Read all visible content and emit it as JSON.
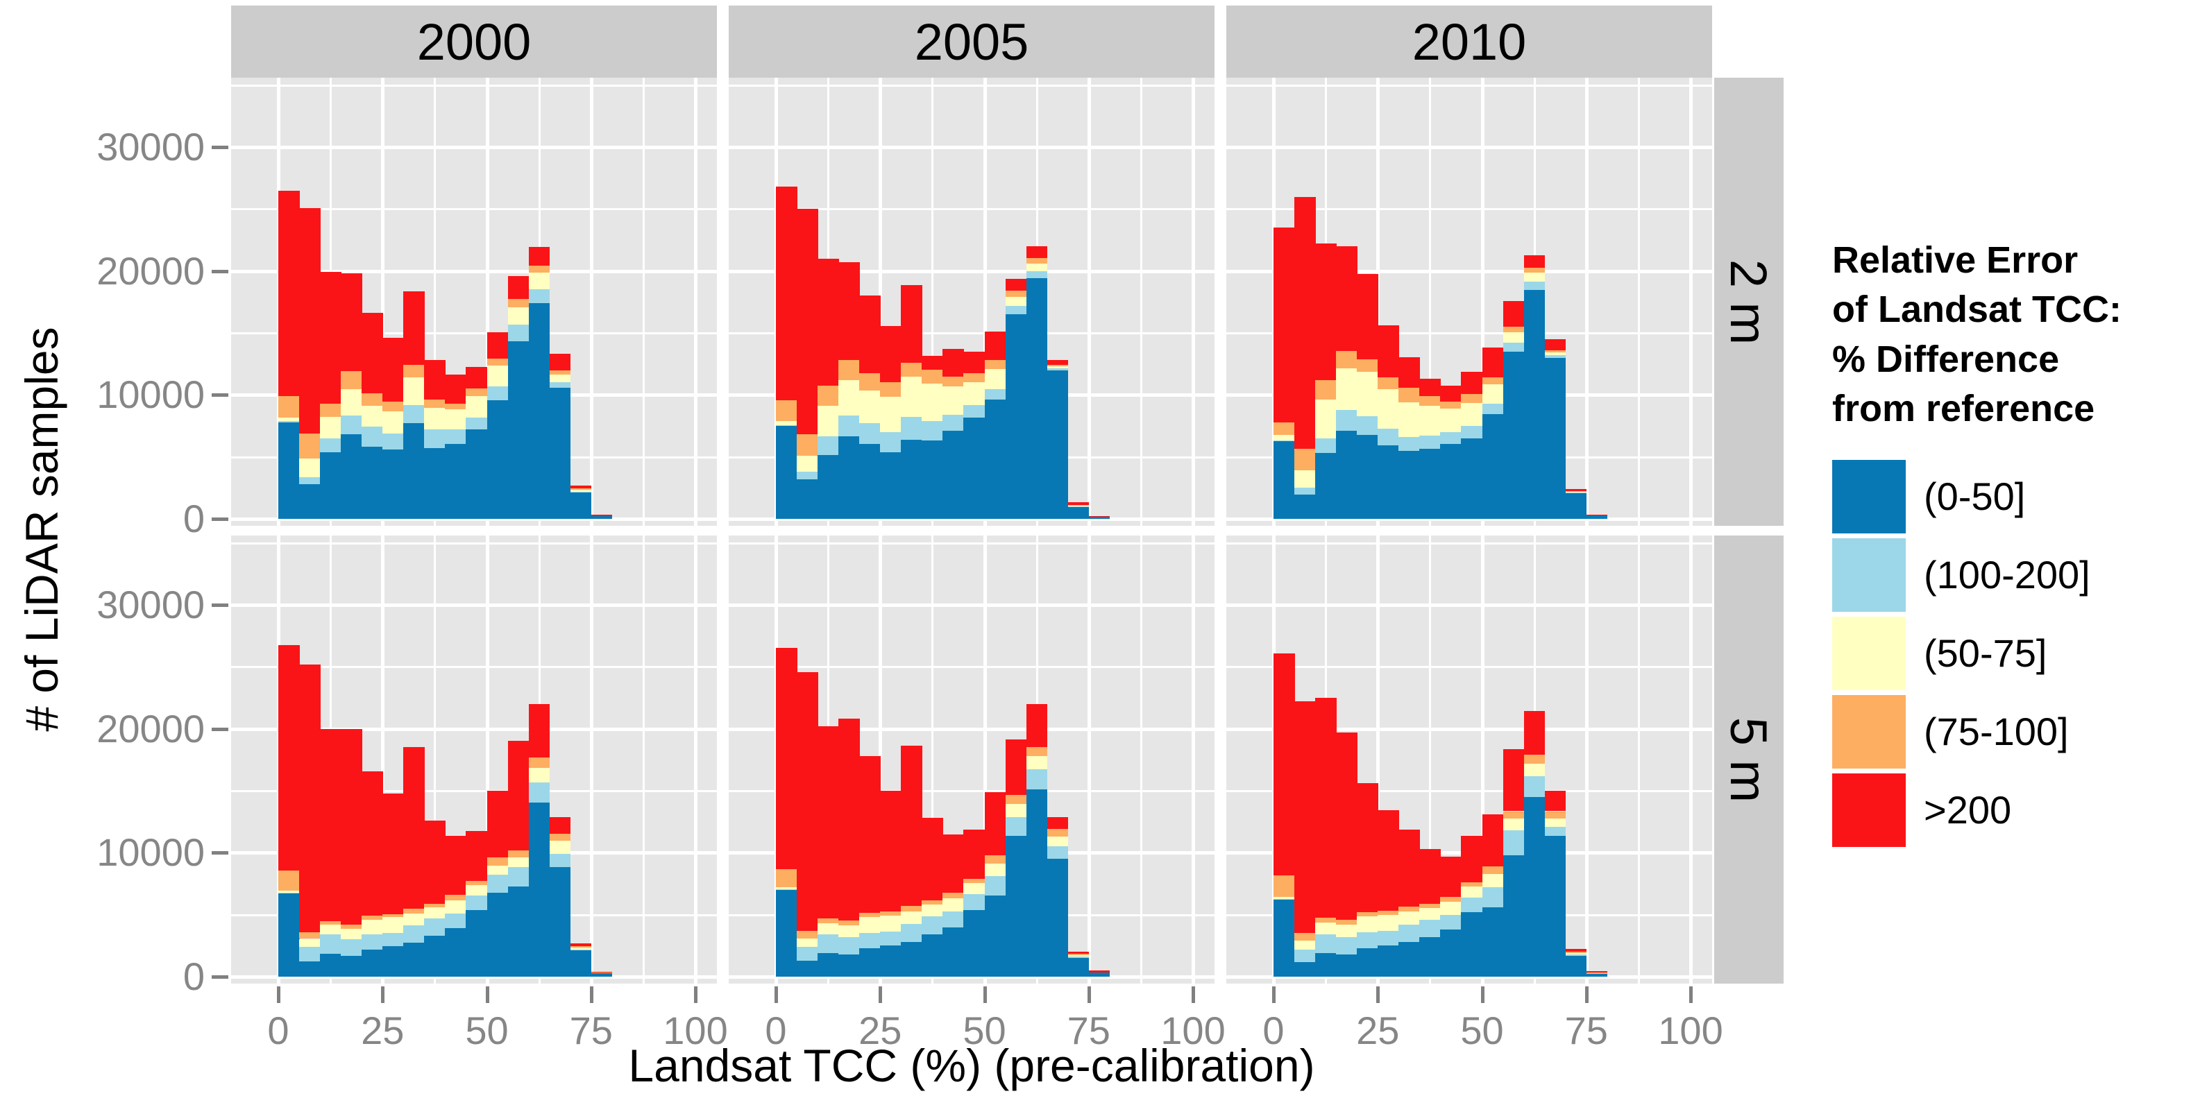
{
  "figure": {
    "kind": "faceted stacked histogram (ggplot2 style)",
    "background": "#ffffff"
  },
  "x_axis": {
    "title": "Landsat TCC (%) (pre-calibration)",
    "tick_labels": [
      "0",
      "25",
      "50",
      "75",
      "100"
    ],
    "tick_values": [
      0,
      25,
      50,
      75,
      100
    ]
  },
  "y_axis": {
    "title": "# of LiDAR samples",
    "tick_labels": [
      "0",
      "10000",
      "20000",
      "30000"
    ],
    "tick_values": [
      0,
      10000,
      20000,
      30000
    ]
  },
  "facets": {
    "columns": [
      "2000",
      "2005",
      "2010"
    ],
    "rows": [
      "2 m",
      "5 m"
    ]
  },
  "legend": {
    "title": "Relative Error\nof Landsat TCC:\n% Difference\nfrom reference",
    "items": [
      {
        "label": "(0-50]",
        "color": "#0778B4"
      },
      {
        "label": "(100-200]",
        "color": "#9BD7E8"
      },
      {
        "label": "(50-75]",
        "color": "#FFFFC2"
      },
      {
        "label": "(75-100]",
        "color": "#FDAE61"
      },
      {
        "label": ">200",
        "color": "#FA1417"
      }
    ]
  },
  "colors": {
    "panel_bg": "#E6E6E6",
    "strip_bg": "#CCCCCC",
    "grid": "#FFFFFF",
    "tick_text": "#868686",
    "tick_mark": "#808080"
  },
  "chart_data": {
    "type": "bar",
    "subtype": "stacked-histogram",
    "bin_start": 0,
    "bin_width": 5,
    "x_range_shown": [
      0,
      80
    ],
    "ylim": [
      0,
      35600
    ],
    "grid": {
      "major_y": [
        0,
        10000,
        20000,
        30000
      ],
      "minor_y": [
        5000,
        15000,
        25000,
        35000
      ],
      "major_x": [
        0,
        25,
        50,
        75,
        100
      ],
      "minor_x": [
        12.5,
        37.5,
        62.5,
        87.5
      ]
    },
    "stack_order_bottom_to_top": [
      "(0-50]",
      "(100-200]",
      "(50-75]",
      "(75-100]",
      ">200"
    ],
    "panels": [
      {
        "year": "2000",
        "resolution": "2 m",
        "row": 0,
        "col": 0,
        "bins": [
          [
            7800,
            100,
            250,
            1750,
            16600
          ],
          [
            2800,
            550,
            1500,
            2050,
            18150
          ],
          [
            5350,
            1150,
            1750,
            1050,
            10600
          ],
          [
            6850,
            1500,
            2100,
            1500,
            7850
          ],
          [
            5800,
            1650,
            1650,
            1050,
            6450
          ],
          [
            5600,
            1300,
            1750,
            800,
            5150
          ],
          [
            7700,
            1500,
            2200,
            1050,
            5900
          ],
          [
            5700,
            1500,
            1750,
            700,
            3150
          ],
          [
            6050,
            1150,
            1650,
            450,
            2350
          ],
          [
            7200,
            950,
            1750,
            600,
            1750
          ],
          [
            9550,
            1150,
            1650,
            600,
            2100
          ],
          [
            14350,
            1300,
            1400,
            700,
            1850
          ],
          [
            17400,
            1150,
            1300,
            600,
            1500
          ],
          [
            10600,
            450,
            600,
            350,
            1300
          ],
          [
            2100,
            100,
            150,
            100,
            250
          ],
          [
            250,
            0,
            0,
            0,
            100
          ]
        ]
      },
      {
        "year": "2005",
        "resolution": "2 m",
        "row": 0,
        "col": 1,
        "bins": [
          [
            7500,
            50,
            350,
            1650,
            17250
          ],
          [
            3200,
            600,
            1300,
            1750,
            18150
          ],
          [
            5150,
            1500,
            2500,
            1600,
            10250
          ],
          [
            6650,
            1700,
            2850,
            1600,
            7900
          ],
          [
            6050,
            1700,
            2600,
            1400,
            6300
          ],
          [
            5400,
            1600,
            2850,
            1150,
            4550
          ],
          [
            6400,
            1850,
            3200,
            1150,
            6250
          ],
          [
            6300,
            1600,
            3000,
            1150,
            1100
          ],
          [
            7100,
            1300,
            2300,
            800,
            2200
          ],
          [
            8150,
            1050,
            1850,
            700,
            1750
          ],
          [
            9650,
            800,
            1650,
            700,
            2300
          ],
          [
            16500,
            700,
            700,
            500,
            950
          ],
          [
            19400,
            600,
            600,
            450,
            950
          ],
          [
            12000,
            150,
            150,
            100,
            400
          ],
          [
            950,
            50,
            50,
            50,
            250
          ],
          [
            200,
            0,
            0,
            0,
            50
          ]
        ]
      },
      {
        "year": "2010",
        "resolution": "2 m",
        "row": 0,
        "col": 2,
        "bins": [
          [
            6300,
            50,
            400,
            1050,
            15700
          ],
          [
            1950,
            550,
            1400,
            1750,
            20350
          ],
          [
            5300,
            1200,
            3100,
            1600,
            11050
          ],
          [
            7100,
            1700,
            3350,
            1400,
            8450
          ],
          [
            6800,
            1500,
            3550,
            1050,
            6850
          ],
          [
            5950,
            1300,
            3200,
            950,
            4200
          ],
          [
            5500,
            1100,
            2800,
            1200,
            2450
          ],
          [
            5650,
            1050,
            2450,
            750,
            1400
          ],
          [
            6050,
            950,
            1900,
            550,
            1300
          ],
          [
            6500,
            1000,
            1850,
            700,
            1800
          ],
          [
            8450,
            850,
            1550,
            550,
            2400
          ],
          [
            13500,
            700,
            850,
            450,
            2100
          ],
          [
            18450,
            700,
            700,
            400,
            1000
          ],
          [
            13000,
            200,
            250,
            150,
            900
          ],
          [
            2050,
            50,
            100,
            50,
            150
          ],
          [
            300,
            0,
            0,
            0,
            50
          ]
        ]
      },
      {
        "year": "2000",
        "resolution": "5 m",
        "row": 1,
        "col": 0,
        "bins": [
          [
            6750,
            50,
            150,
            1600,
            18200
          ],
          [
            1250,
            1150,
            650,
            550,
            21600
          ],
          [
            1850,
            1550,
            800,
            300,
            15500
          ],
          [
            1700,
            1300,
            850,
            350,
            15800
          ],
          [
            2200,
            1200,
            1200,
            300,
            11650
          ],
          [
            2450,
            1100,
            1250,
            250,
            9750
          ],
          [
            2750,
            1400,
            950,
            400,
            13050
          ],
          [
            3300,
            1400,
            900,
            300,
            6700
          ],
          [
            3900,
            1200,
            1050,
            450,
            4750
          ],
          [
            5350,
            1200,
            850,
            350,
            4000
          ],
          [
            6800,
            1450,
            700,
            700,
            5350
          ],
          [
            7300,
            1550,
            750,
            600,
            8850
          ],
          [
            14050,
            1650,
            1150,
            850,
            4300
          ],
          [
            8850,
            1050,
            1050,
            600,
            1350
          ],
          [
            2100,
            100,
            150,
            100,
            250
          ],
          [
            300,
            0,
            0,
            50,
            50
          ]
        ]
      },
      {
        "year": "2005",
        "resolution": "5 m",
        "row": 1,
        "col": 1,
        "bins": [
          [
            7000,
            50,
            150,
            1500,
            17850
          ],
          [
            1300,
            1100,
            700,
            600,
            20900
          ],
          [
            1900,
            1500,
            900,
            400,
            15500
          ],
          [
            1800,
            1400,
            950,
            400,
            16300
          ],
          [
            2300,
            1250,
            1250,
            350,
            12650
          ],
          [
            2500,
            1150,
            1300,
            300,
            9750
          ],
          [
            2800,
            1450,
            1000,
            450,
            12950
          ],
          [
            3400,
            1450,
            950,
            350,
            6650
          ],
          [
            4000,
            1250,
            1100,
            450,
            4650
          ],
          [
            5400,
            1250,
            900,
            350,
            3950
          ],
          [
            6550,
            1550,
            1050,
            650,
            5100
          ],
          [
            11350,
            1550,
            1050,
            700,
            4500
          ],
          [
            15100,
            1650,
            1050,
            750,
            3450
          ],
          [
            9500,
            1050,
            750,
            600,
            1000
          ],
          [
            1500,
            100,
            150,
            100,
            150
          ],
          [
            350,
            0,
            0,
            0,
            150
          ]
        ]
      },
      {
        "year": "2010",
        "resolution": "5 m",
        "row": 1,
        "col": 2,
        "bins": [
          [
            6200,
            50,
            200,
            1700,
            17950
          ],
          [
            1200,
            1000,
            700,
            600,
            18700
          ],
          [
            1900,
            1500,
            950,
            400,
            17750
          ],
          [
            1800,
            1400,
            1000,
            400,
            15100
          ],
          [
            2300,
            1300,
            1250,
            350,
            10400
          ],
          [
            2500,
            1200,
            1300,
            300,
            8150
          ],
          [
            2800,
            1400,
            1050,
            400,
            6200
          ],
          [
            3200,
            1400,
            950,
            350,
            4400
          ],
          [
            3800,
            1200,
            1050,
            400,
            3250
          ],
          [
            5200,
            1200,
            850,
            350,
            3750
          ],
          [
            5600,
            1600,
            1100,
            600,
            4200
          ],
          [
            9800,
            2000,
            950,
            600,
            5000
          ],
          [
            14500,
            1650,
            1050,
            700,
            3550
          ],
          [
            11350,
            750,
            650,
            600,
            1650
          ],
          [
            1700,
            100,
            100,
            100,
            250
          ],
          [
            250,
            0,
            0,
            100,
            100
          ]
        ]
      }
    ]
  }
}
